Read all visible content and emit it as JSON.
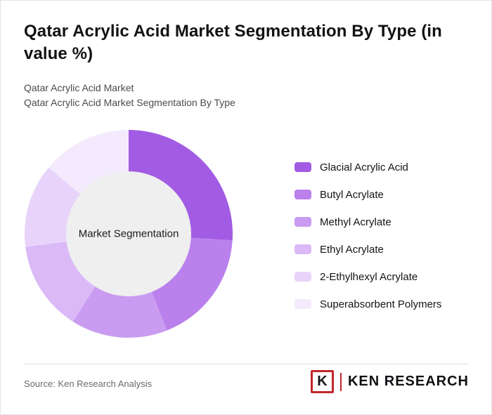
{
  "page": {
    "title": "Qatar Acrylic Acid Market Segmentation By Type (in value %)",
    "subtitle_line1": "Qatar Acrylic Acid Market",
    "subtitle_line2": "Qatar Acrylic Acid Market Segmentation By Type",
    "source": "Source: Ken Research Analysis"
  },
  "logo": {
    "letter": "K",
    "brand": "KEN RESEARCH",
    "accent_color": "#C0272D"
  },
  "chart_data": {
    "type": "pie",
    "donut": true,
    "title": "Qatar Acrylic Acid Market Segmentation By Type (in value %)",
    "center_label": "Market Segmentation",
    "center_circle_color": "#EFEFEF",
    "start_angle_deg": 0,
    "direction": "clockwise",
    "legend_position": "right",
    "units": "value %",
    "segments": [
      {
        "label": "Glacial Acrylic Acid",
        "value": 26,
        "color": "#A25BE3"
      },
      {
        "label": "Butyl Acrylate",
        "value": 18,
        "color": "#BA80EC"
      },
      {
        "label": "Methyl Acrylate",
        "value": 15,
        "color": "#C99CF1"
      },
      {
        "label": "Ethyl Acrylate",
        "value": 14,
        "color": "#DAB9F6"
      },
      {
        "label": "2-Ethylhexyl Acrylate",
        "value": 13,
        "color": "#E8D4FA"
      },
      {
        "label": "Superabsorbent Polymers",
        "value": 14,
        "color": "#F3EBFD"
      }
    ]
  }
}
